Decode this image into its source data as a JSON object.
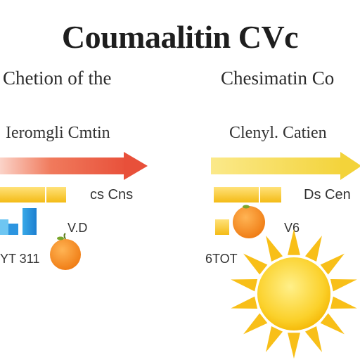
{
  "title": "Coumaalitin CVc",
  "left": {
    "heading": "Chetion of the",
    "subheading": "Ieromgli Cmtin",
    "bar_label": "cs Cns",
    "value_label": "V.D",
    "bottom_label": "YT 311",
    "arrow_color": "#e8503a",
    "accent_color": "#f6c20c"
  },
  "right": {
    "heading": "Chesimatin Co",
    "subheading": "Clenyl. Catien",
    "bar_label": "Ds Cen",
    "value_label": "V6",
    "bottom_label": "6TOT",
    "arrow_color": "#f4d940",
    "accent_color": "#f6c20c"
  },
  "icons": {
    "orange": "orange-icon",
    "sun": "sun-icon",
    "bars": "bar-chart-icon"
  }
}
